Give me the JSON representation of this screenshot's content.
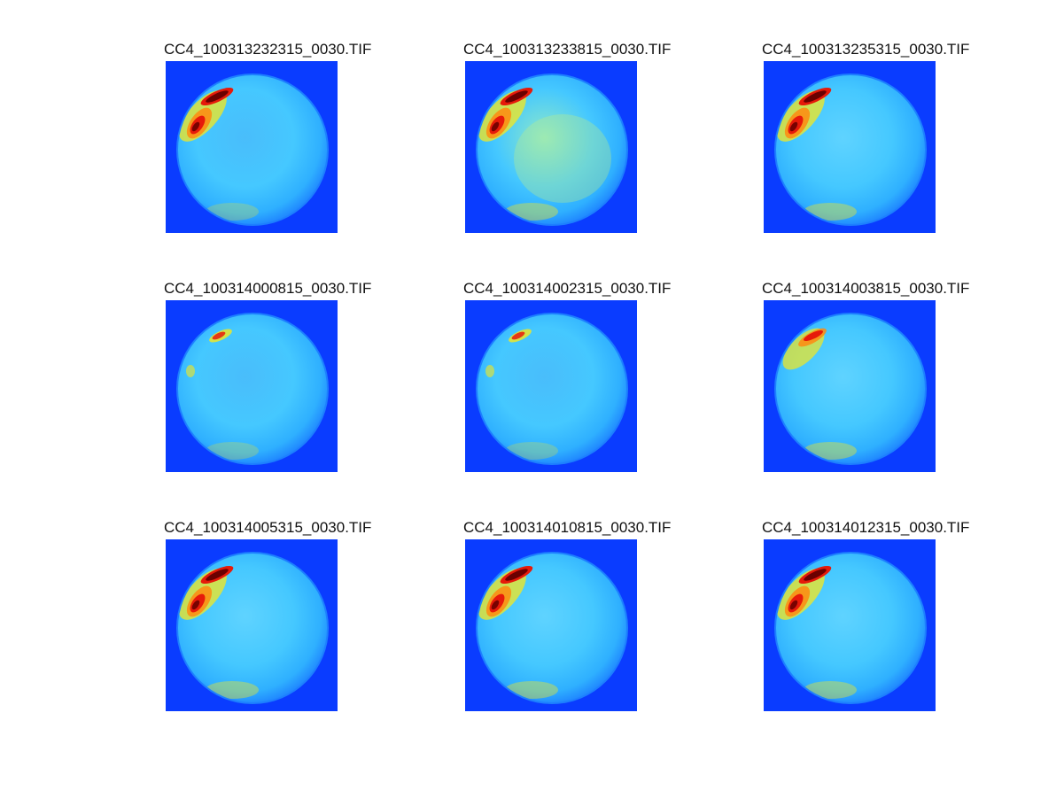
{
  "panels": [
    {
      "title": "CC4_100313232315_0030.TIF",
      "brightness": "dim",
      "hotspot": "strong"
    },
    {
      "title": "CC4_100313233815_0030.TIF",
      "brightness": "bright",
      "hotspot": "strong"
    },
    {
      "title": "CC4_100313235315_0030.TIF",
      "brightness": "medium",
      "hotspot": "strong"
    },
    {
      "title": "CC4_100314000815_0030.TIF",
      "brightness": "dim",
      "hotspot": "weak"
    },
    {
      "title": "CC4_100314002315_0030.TIF",
      "brightness": "dim",
      "hotspot": "weak"
    },
    {
      "title": "CC4_100314003815_0030.TIF",
      "brightness": "medium",
      "hotspot": "medium"
    },
    {
      "title": "CC4_100314005315_0030.TIF",
      "brightness": "medium",
      "hotspot": "strong"
    },
    {
      "title": "CC4_100314010815_0030.TIF",
      "brightness": "medium",
      "hotspot": "strong"
    },
    {
      "title": "CC4_100314012315_0030.TIF",
      "brightness": "medium",
      "hotspot": "strong"
    }
  ],
  "colors": {
    "background": "#ffffff",
    "frame": "#0a3cff",
    "disk_outer": "#1f86ff",
    "disk_mid": "#2fb0ff",
    "disk_inner": "#45c8ff",
    "warm_yellow": "#f7e81c",
    "warm_orange": "#ff8a10",
    "warm_red": "#e61a0a",
    "warm_dark": "#6b0000"
  },
  "title_color": "#111111"
}
